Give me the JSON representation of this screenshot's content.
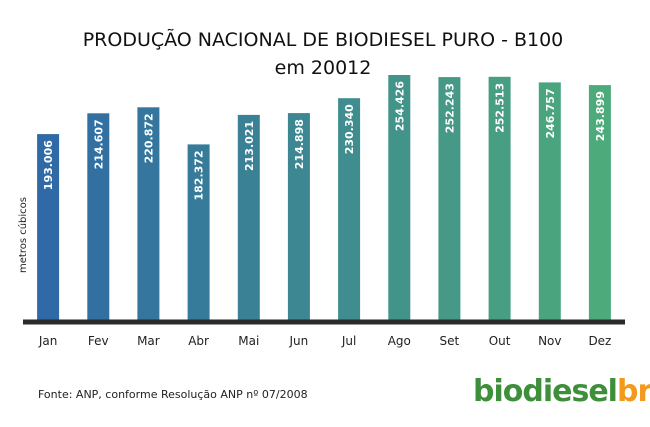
{
  "colors": {
    "bar_start": "#2f6aa6",
    "bar_end": "#4daa7a",
    "baseline": "#2a2a2a",
    "logo_main": "#3d8f3a",
    "logo_accent": "#f39a1d"
  },
  "chart_data": {
    "type": "bar",
    "title": "PRODUÇÃO NACIONAL DE BIODIESEL PURO - B100",
    "subtitle": "em 20012",
    "ylabel": "metros cúbicos",
    "xlabel": "",
    "ylim": [
      0,
      270000
    ],
    "grid": false,
    "categories": [
      "Jan",
      "Fev",
      "Mar",
      "Abr",
      "Mai",
      "Jun",
      "Jul",
      "Ago",
      "Set",
      "Out",
      "Nov",
      "Dez"
    ],
    "values": [
      193006,
      214607,
      220872,
      182372,
      213021,
      214898,
      230340,
      254426,
      252243,
      252513,
      246757,
      243899
    ],
    "value_labels": [
      "193.006",
      "214.607",
      "220.872",
      "182.372",
      "213.021",
      "214.898",
      "230.340",
      "254.426",
      "252.243",
      "252.513",
      "246.757",
      "243.899"
    ]
  },
  "footer": {
    "source": "Fonte: ANP, conforme Resolução ANP nº 07/2008",
    "logo_main": "biodiesel",
    "logo_accent": "br"
  }
}
